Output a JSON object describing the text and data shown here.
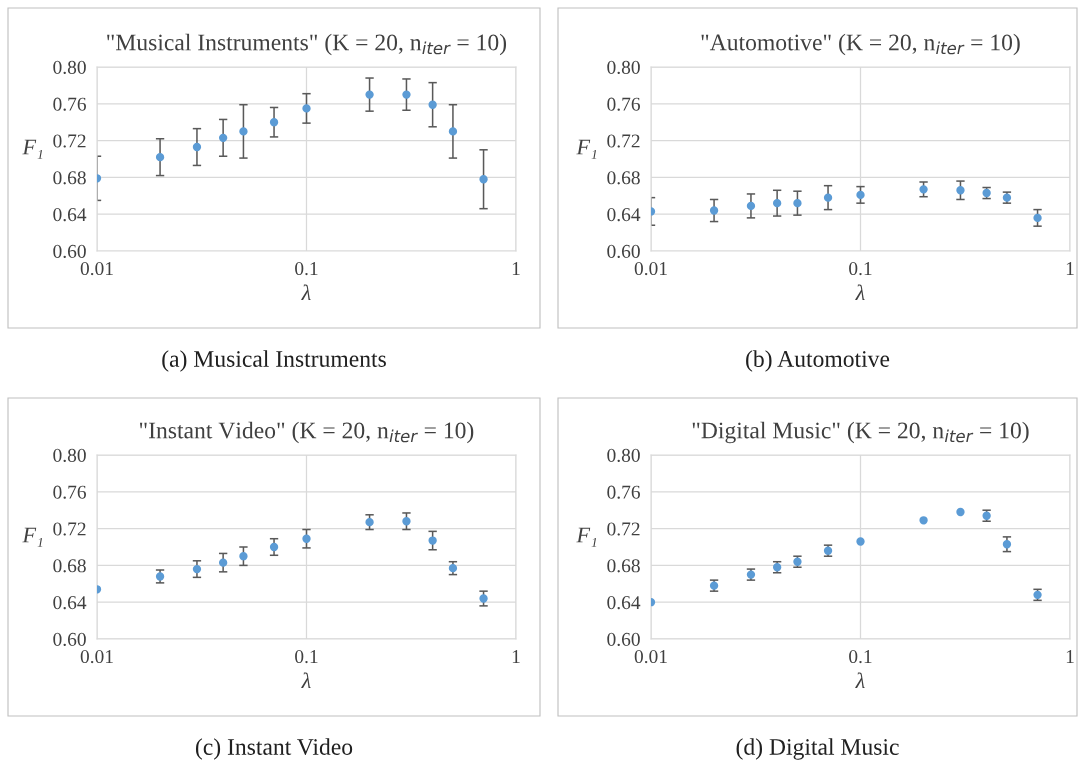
{
  "chart_data": [
    {
      "type": "scatter",
      "title": "\"Musical Instruments\" (K = 20, n$_{iter}$ = 10)",
      "xlabel": "λ",
      "ylabel": "F₁",
      "annotations": [
        "(a) Musical Instruments"
      ],
      "log": "x",
      "xlim": [
        0.01,
        1
      ],
      "xticks": [
        0.01,
        0.1,
        1
      ],
      "ylim": [
        0.6,
        0.8
      ],
      "yticks": [
        {
          "value": 0.6,
          "label": "0.60"
        },
        {
          "value": 0.64,
          "label": "0.64"
        },
        {
          "value": 0.68,
          "label": "0.68"
        },
        {
          "value": 0.72,
          "label": "0.72"
        },
        {
          "value": 0.76,
          "label": "0.76"
        },
        {
          "value": 0.8,
          "label": "0.80"
        }
      ],
      "grid": true,
      "marker": "circle",
      "x": [
        0.01,
        0.02,
        0.03,
        0.04,
        0.05,
        0.07,
        0.1,
        0.2,
        0.3,
        0.4,
        0.5,
        0.7
      ],
      "series": [
        {
          "color": "#5b9bd5",
          "values": [
            0.679,
            0.702,
            0.713,
            0.723,
            0.73,
            0.74,
            0.755,
            0.77,
            0.77,
            0.759,
            0.73,
            0.678
          ],
          "errors": [
            0.024,
            0.02,
            0.02,
            0.02,
            0.029,
            0.016,
            0.016,
            0.018,
            0.017,
            0.024,
            0.029,
            0.032
          ]
        }
      ]
    },
    {
      "type": "scatter",
      "title": "\"Automotive\" (K = 20, n$_{iter}$ = 10)",
      "xlabel": "λ",
      "ylabel": "F₁",
      "annotations": [
        "(b) Automotive"
      ],
      "log": "x",
      "xlim": [
        0.01,
        1
      ],
      "xticks": [
        0.01,
        0.1,
        1
      ],
      "ylim": [
        0.6,
        0.8
      ],
      "yticks": [
        {
          "value": 0.6,
          "label": "0.60"
        },
        {
          "value": 0.64,
          "label": "0.64"
        },
        {
          "value": 0.68,
          "label": "0.68"
        },
        {
          "value": 0.72,
          "label": "0.72"
        },
        {
          "value": 0.76,
          "label": "0.76"
        },
        {
          "value": 0.8,
          "label": "0.80"
        }
      ],
      "grid": true,
      "marker": "circle",
      "x": [
        0.01,
        0.02,
        0.03,
        0.04,
        0.05,
        0.07,
        0.1,
        0.2,
        0.3,
        0.4,
        0.5,
        0.7
      ],
      "series": [
        {
          "color": "#5b9bd5",
          "values": [
            0.643,
            0.644,
            0.649,
            0.652,
            0.652,
            0.658,
            0.661,
            0.667,
            0.666,
            0.663,
            0.658,
            0.636
          ],
          "errors": [
            0.015,
            0.012,
            0.013,
            0.014,
            0.013,
            0.013,
            0.009,
            0.008,
            0.01,
            0.006,
            0.006,
            0.009
          ]
        }
      ]
    },
    {
      "type": "scatter",
      "title": "\"Instant Video\" (K = 20, n$_{iter}$ = 10)",
      "xlabel": "λ",
      "ylabel": "F₁",
      "annotations": [
        "(c) Instant Video"
      ],
      "log": "x",
      "xlim": [
        0.01,
        1
      ],
      "xticks": [
        0.01,
        0.1,
        1
      ],
      "ylim": [
        0.6,
        0.8
      ],
      "yticks": [
        {
          "value": 0.6,
          "label": "0.60"
        },
        {
          "value": 0.64,
          "label": "0.64"
        },
        {
          "value": 0.68,
          "label": "0.68"
        },
        {
          "value": 0.72,
          "label": "0.72"
        },
        {
          "value": 0.76,
          "label": "0.76"
        },
        {
          "value": 0.8,
          "label": "0.80"
        }
      ],
      "grid": true,
      "marker": "circle",
      "x": [
        0.01,
        0.02,
        0.03,
        0.04,
        0.05,
        0.07,
        0.1,
        0.2,
        0.3,
        0.4,
        0.5,
        0.7
      ],
      "series": [
        {
          "color": "#5b9bd5",
          "values": [
            0.654,
            0.668,
            0.676,
            0.683,
            0.69,
            0.7,
            0.709,
            0.727,
            0.728,
            0.707,
            0.677,
            0.644
          ],
          "errors": [
            null,
            0.007,
            0.009,
            0.01,
            0.01,
            0.009,
            0.01,
            0.008,
            0.009,
            0.01,
            0.007,
            0.008
          ]
        }
      ]
    },
    {
      "type": "scatter",
      "title": "\"Digital Music\" (K = 20, n$_{iter}$ = 10)",
      "xlabel": "λ",
      "ylabel": "F₁",
      "annotations": [
        "(d) Digital Music"
      ],
      "log": "x",
      "xlim": [
        0.01,
        1
      ],
      "xticks": [
        0.01,
        0.1,
        1
      ],
      "ylim": [
        0.6,
        0.8
      ],
      "yticks": [
        {
          "value": 0.6,
          "label": "0.60"
        },
        {
          "value": 0.64,
          "label": "0.64"
        },
        {
          "value": 0.68,
          "label": "0.68"
        },
        {
          "value": 0.72,
          "label": "0.72"
        },
        {
          "value": 0.76,
          "label": "0.76"
        },
        {
          "value": 0.8,
          "label": "0.80"
        }
      ],
      "grid": true,
      "marker": "circle",
      "x": [
        0.01,
        0.02,
        0.03,
        0.04,
        0.05,
        0.07,
        0.1,
        0.2,
        0.3,
        0.4,
        0.5,
        0.7
      ],
      "series": [
        {
          "color": "#5b9bd5",
          "values": [
            0.64,
            0.658,
            0.67,
            0.678,
            0.684,
            0.696,
            0.706,
            0.729,
            0.738,
            0.734,
            0.703,
            0.648
          ],
          "errors": [
            null,
            0.006,
            0.006,
            0.006,
            0.006,
            0.006,
            null,
            null,
            null,
            0.006,
            0.008,
            0.006
          ]
        }
      ]
    }
  ]
}
